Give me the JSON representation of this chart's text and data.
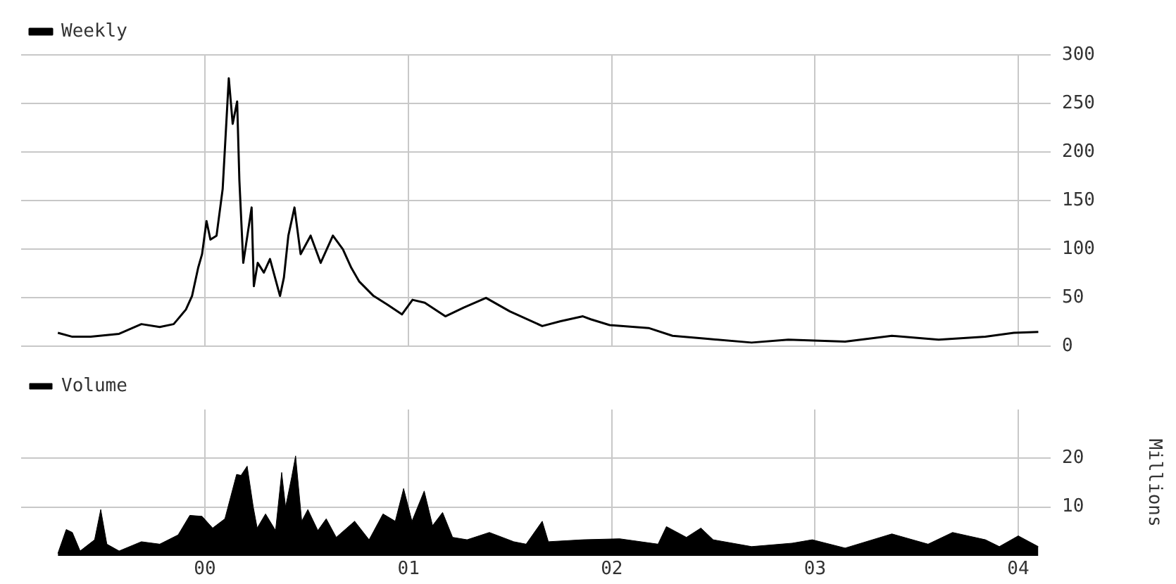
{
  "chart_data": [
    {
      "type": "line",
      "legend": "top left",
      "grid": true,
      "marker": "none",
      "line_style": "solid",
      "tick_labels": "y",
      "xlim": [
        "1999-02-05",
        "2004-02-13"
      ],
      "ylim": [
        0,
        300
      ],
      "yticks": [
        0,
        50,
        100,
        150,
        200,
        250,
        300
      ],
      "xticks": [
        {
          "value": "2000-01-01",
          "label": null
        },
        {
          "value": "2001-01-01",
          "label": null
        },
        {
          "value": "2002-01-01",
          "label": null
        },
        {
          "value": "2003-01-01",
          "label": null
        },
        {
          "value": "2004-01-01",
          "label": null
        }
      ],
      "series": [
        {
          "name": "Weekly",
          "color": "#000000",
          "x": [
            "1999-04-12",
            "1999-05-08",
            "1999-06-10",
            "1999-07-31",
            "1999-09-09",
            "1999-10-12",
            "1999-11-06",
            "1999-11-28",
            "1999-12-09",
            "1999-12-20",
            "1999-12-27",
            "2000-01-04",
            "2000-01-11",
            "2000-01-22",
            "2000-02-02",
            "2000-02-13",
            "2000-02-20",
            "2000-02-28",
            "2000-03-03",
            "2000-03-10",
            "2000-03-25",
            "2000-03-29",
            "2000-04-05",
            "2000-04-16",
            "2000-04-27",
            "2000-05-15",
            "2000-05-22",
            "2000-05-30",
            "2000-06-10",
            "2000-06-21",
            "2000-07-09",
            "2000-07-27",
            "2000-08-18",
            "2000-09-05",
            "2000-09-20",
            "2000-10-04",
            "2000-10-30",
            "2000-11-24",
            "2000-12-20",
            "2001-01-08",
            "2001-01-30",
            "2001-03-08",
            "2001-04-10",
            "2001-05-20",
            "2001-07-02",
            "2001-08-29",
            "2001-10-01",
            "2001-11-10",
            "2001-11-24",
            "2001-12-28",
            "2002-03-08",
            "2002-04-20",
            "2002-06-18",
            "2002-09-09",
            "2002-11-14",
            "2003-02-24",
            "2003-05-19",
            "2003-08-11",
            "2003-11-03",
            "2003-12-24",
            "2004-02-06"
          ],
          "values": [
            14,
            10,
            10,
            13,
            23,
            20,
            23,
            38,
            52,
            81,
            95,
            129,
            110,
            114,
            162,
            276,
            229,
            252,
            171,
            86,
            143,
            62,
            86,
            76,
            90,
            52,
            71,
            114,
            143,
            95,
            114,
            86,
            114,
            100,
            81,
            67,
            52,
            43,
            33,
            48,
            45,
            31,
            40,
            50,
            36,
            21,
            26,
            31,
            28,
            22,
            19,
            11,
            8,
            4,
            7,
            5,
            11,
            7,
            10,
            14,
            15
          ]
        }
      ]
    },
    {
      "type": "area",
      "legend": "top left",
      "grid": true,
      "tick_labels": "xy",
      "ylabel": "Millions",
      "xlim": [
        "1999-02-05",
        "2004-02-13"
      ],
      "ylim": [
        0,
        30
      ],
      "yticks": [
        10,
        20
      ],
      "xticks": [
        {
          "value": "2000-01-01",
          "label": "00"
        },
        {
          "value": "2001-01-01",
          "label": "01"
        },
        {
          "value": "2002-01-01",
          "label": "02"
        },
        {
          "value": "2003-01-01",
          "label": "03"
        },
        {
          "value": "2004-01-01",
          "label": "04"
        }
      ],
      "series": [
        {
          "name": "Volume",
          "color": "#000000",
          "x": [
            "1999-04-12",
            "1999-04-27",
            "1999-05-08",
            "1999-05-22",
            "1999-06-17",
            "1999-06-28",
            "1999-07-09",
            "1999-07-31",
            "1999-09-09",
            "1999-10-12",
            "1999-11-14",
            "1999-12-05",
            "1999-12-27",
            "2000-01-15",
            "2000-02-06",
            "2000-02-27",
            "2000-03-06",
            "2000-03-17",
            "2000-03-28",
            "2000-04-04",
            "2000-04-19",
            "2000-05-07",
            "2000-05-18",
            "2000-05-25",
            "2000-06-05",
            "2000-06-12",
            "2000-06-23",
            "2000-07-04",
            "2000-07-22",
            "2000-08-06",
            "2000-08-24",
            "2000-09-26",
            "2000-10-22",
            "2000-11-16",
            "2000-12-08",
            "2000-12-23",
            "2001-01-07",
            "2001-01-29",
            "2001-02-13",
            "2001-03-03",
            "2001-03-21",
            "2001-04-16",
            "2001-05-26",
            "2001-07-09",
            "2001-07-31",
            "2001-08-29",
            "2001-09-09",
            "2001-11-10",
            "2002-01-15",
            "2002-03-25",
            "2002-04-09",
            "2002-05-15",
            "2002-06-10",
            "2002-07-02",
            "2002-09-09",
            "2002-11-21",
            "2002-12-27",
            "2003-02-24",
            "2003-05-19",
            "2003-07-23",
            "2003-09-05",
            "2003-11-03",
            "2003-11-28",
            "2004-01-01",
            "2004-02-06"
          ],
          "values": [
            0.5,
            5.4,
            4.8,
            1.0,
            3.3,
            9.5,
            2.4,
            1.0,
            2.9,
            2.4,
            4.3,
            8.3,
            8.1,
            5.7,
            7.6,
            16.7,
            16.5,
            18.4,
            10,
            5.7,
            8.6,
            5.2,
            17.1,
            10,
            16.2,
            20.5,
            7.1,
            9.5,
            5.2,
            7.6,
            3.8,
            7.1,
            3.3,
            8.6,
            7.1,
            13.8,
            7.1,
            13.3,
            6.2,
            8.9,
            3.8,
            3.3,
            4.8,
            2.9,
            2.4,
            7.1,
            2.9,
            3.3,
            3.5,
            2.4,
            6.0,
            3.8,
            5.7,
            3.3,
            1.9,
            2.6,
            3.3,
            1.6,
            4.5,
            2.4,
            4.8,
            3.3,
            1.9,
            4.1,
            1.9
          ]
        }
      ]
    }
  ]
}
